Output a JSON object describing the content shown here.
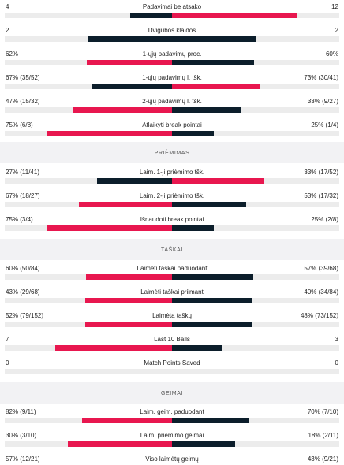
{
  "colors": {
    "home_bar": "#e8174f",
    "away_bar": "#0c1e2b"
  },
  "blocks": [
    {
      "type": "stat",
      "label": "Padavimai be atsako",
      "home_text": "4",
      "away_text": "12",
      "home_value": 4,
      "away_value": 12,
      "leader": "away"
    },
    {
      "type": "stat",
      "label": "Dvigubos klaidos",
      "home_text": "2",
      "away_text": "2",
      "home_value": 2,
      "away_value": 2,
      "leader": "none"
    },
    {
      "type": "stat",
      "label": "1-ųjų padavimų proc.",
      "home_text": "62%",
      "away_text": "60%",
      "home_value": 62,
      "away_value": 60,
      "leader": "home"
    },
    {
      "type": "stat",
      "label": "1-ųjų padavimų l. tšk.",
      "home_text": "67% (35/52)",
      "away_text": "73% (30/41)",
      "home_value": 67,
      "away_value": 73,
      "leader": "away"
    },
    {
      "type": "stat",
      "label": "2-ųjų padavimų l. tšk.",
      "home_text": "47% (15/32)",
      "away_text": "33% (9/27)",
      "home_value": 47,
      "away_value": 33,
      "leader": "home"
    },
    {
      "type": "stat",
      "label": "Atlaikyti break pointai",
      "home_text": "75% (6/8)",
      "away_text": "25% (1/4)",
      "home_value": 75,
      "away_value": 25,
      "leader": "home"
    },
    {
      "type": "section",
      "title": "PRIĖMIMAS"
    },
    {
      "type": "stat",
      "label": "Laim. 1-ji priėmimo tšk.",
      "home_text": "27% (11/41)",
      "away_text": "33% (17/52)",
      "home_value": 27,
      "away_value": 33,
      "leader": "away"
    },
    {
      "type": "stat",
      "label": "Laim. 2-ji priėmimo tšk.",
      "home_text": "67% (18/27)",
      "away_text": "53% (17/32)",
      "home_value": 67,
      "away_value": 53,
      "leader": "home"
    },
    {
      "type": "stat",
      "label": "Išnaudoti break pointai",
      "home_text": "75% (3/4)",
      "away_text": "25% (2/8)",
      "home_value": 75,
      "away_value": 25,
      "leader": "home"
    },
    {
      "type": "section",
      "title": "TAŠKAI"
    },
    {
      "type": "stat",
      "label": "Laimėti taškai paduodant",
      "home_text": "60% (50/84)",
      "away_text": "57% (39/68)",
      "home_value": 60,
      "away_value": 57,
      "leader": "home"
    },
    {
      "type": "stat",
      "label": "Laimėti taškai priimant",
      "home_text": "43% (29/68)",
      "away_text": "40% (34/84)",
      "home_value": 43,
      "away_value": 40,
      "leader": "home"
    },
    {
      "type": "stat",
      "label": "Laimėta taškų",
      "home_text": "52% (79/152)",
      "away_text": "48% (73/152)",
      "home_value": 52,
      "away_value": 48,
      "leader": "home"
    },
    {
      "type": "stat",
      "label": "Last 10 Balls",
      "home_text": "7",
      "away_text": "3",
      "home_value": 7,
      "away_value": 3,
      "leader": "home"
    },
    {
      "type": "stat",
      "label": "Match Points Saved",
      "home_text": "0",
      "away_text": "0",
      "home_value": 0,
      "away_value": 0,
      "leader": "none"
    },
    {
      "type": "section",
      "title": "GEIMAI"
    },
    {
      "type": "stat",
      "label": "Laim. geim. paduodant",
      "home_text": "82% (9/11)",
      "away_text": "70% (7/10)",
      "home_value": 82,
      "away_value": 70,
      "leader": "home"
    },
    {
      "type": "stat",
      "label": "Laim. priėmimo geimai",
      "home_text": "30% (3/10)",
      "away_text": "18% (2/11)",
      "home_value": 30,
      "away_value": 18,
      "leader": "home"
    },
    {
      "type": "stat",
      "label": "Viso laimėtų geimų",
      "home_text": "57% (12/21)",
      "away_text": "43% (9/21)",
      "home_value": 57,
      "away_value": 43,
      "leader": "home"
    }
  ]
}
